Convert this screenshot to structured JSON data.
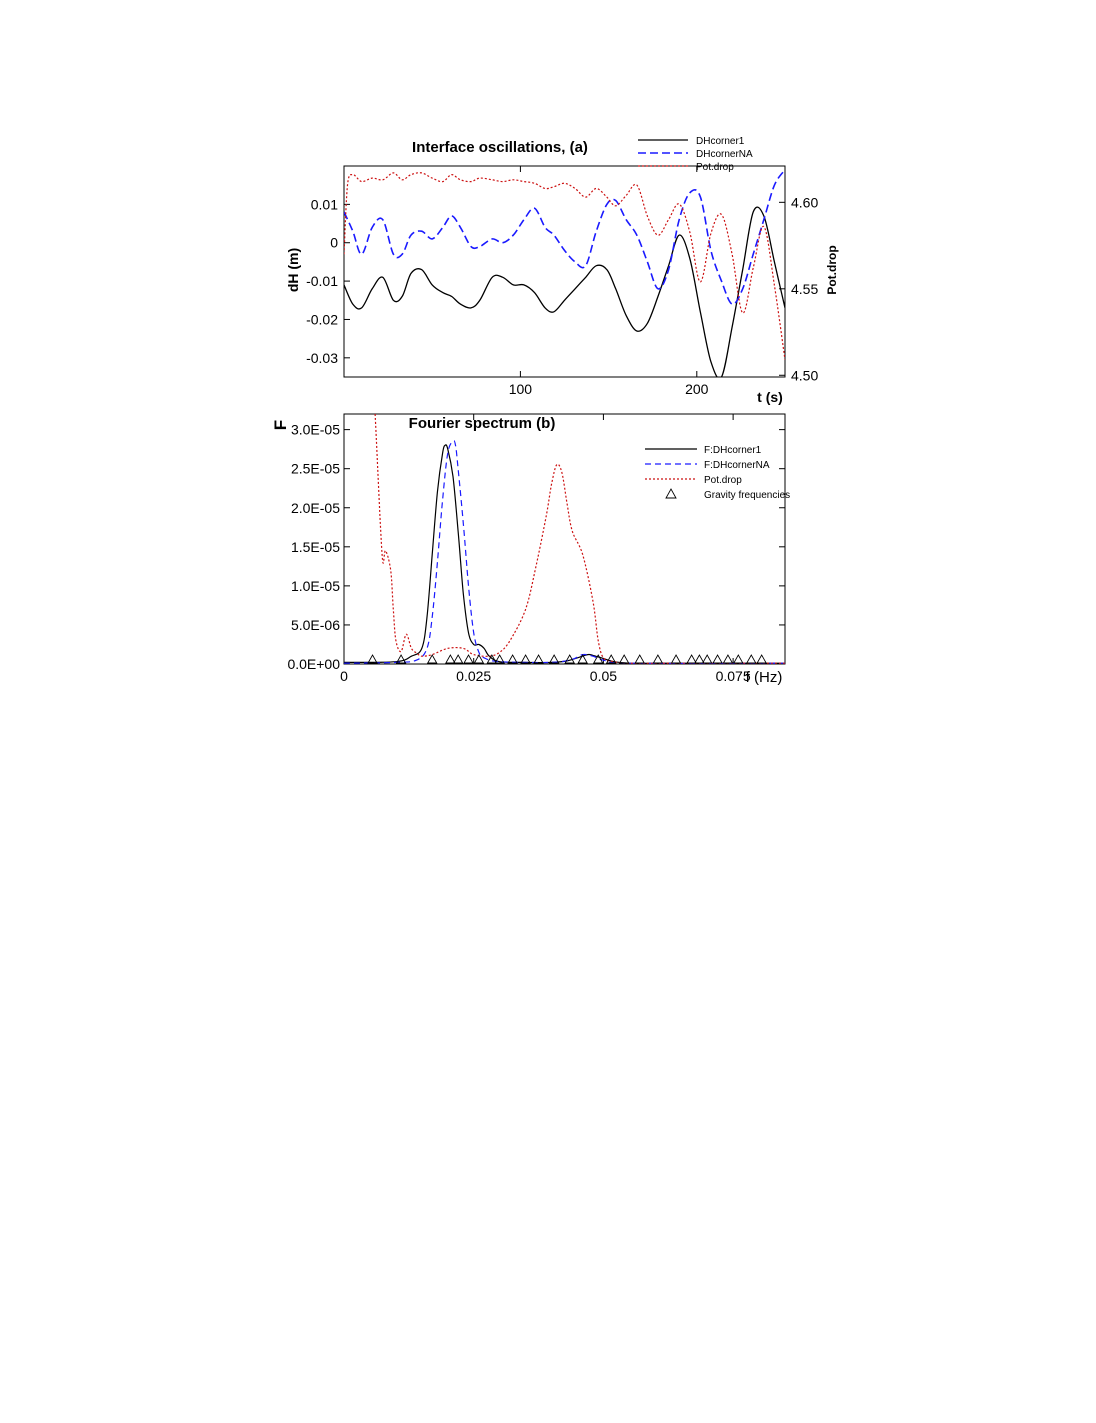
{
  "chart_data": [
    {
      "id": "a",
      "type": "line",
      "title": "Interface oscillations,  (a)",
      "xlabel": "t (s)",
      "ylabel": "dH (m)",
      "y2label": "Pot.drop",
      "xlim": [
        0,
        250
      ],
      "ylim": [
        -0.035,
        0.02
      ],
      "y2lim": [
        4.499,
        4.621
      ],
      "xticks": [
        100,
        200
      ],
      "xtick_labels": [
        "100",
        "200"
      ],
      "yticks": [
        0.01,
        0,
        -0.01,
        -0.02,
        -0.03
      ],
      "ytick_labels": [
        "0.01",
        "0",
        "-0.01",
        "-0.02",
        "-0.03"
      ],
      "y2ticks": [
        4.6,
        4.55,
        4.5
      ],
      "y2tick_labels": [
        "4.60",
        "4.55",
        "4.50"
      ],
      "legend_position": "top-right",
      "series": [
        {
          "name": "DHcorner1",
          "axis": "left",
          "color": "#000000",
          "dash": "",
          "x": [
            0,
            5,
            10,
            16,
            22,
            28,
            33,
            38,
            44,
            50,
            56,
            61,
            66,
            72,
            77,
            84,
            90,
            96,
            102,
            108,
            114,
            119,
            125,
            131,
            137,
            143,
            149,
            154,
            160,
            166,
            172,
            178,
            184,
            190,
            196,
            202,
            208,
            214,
            220,
            226,
            232,
            238,
            244,
            250
          ],
          "y": [
            -0.011,
            -0.016,
            -0.017,
            -0.012,
            -0.009,
            -0.015,
            -0.014,
            -0.008,
            -0.007,
            -0.011,
            -0.013,
            -0.014,
            -0.016,
            -0.017,
            -0.015,
            -0.009,
            -0.009,
            -0.011,
            -0.011,
            -0.013,
            -0.017,
            -0.018,
            -0.015,
            -0.012,
            -0.009,
            -0.006,
            -0.007,
            -0.012,
            -0.019,
            -0.023,
            -0.021,
            -0.014,
            -0.006,
            0.002,
            -0.004,
            -0.018,
            -0.031,
            -0.035,
            -0.022,
            -0.007,
            0.008,
            0.007,
            -0.005,
            -0.017
          ]
        },
        {
          "name": "DHcornerNA",
          "axis": "left",
          "color": "#1a1aff",
          "dash": "8,4",
          "x": [
            0,
            5,
            10,
            16,
            22,
            28,
            33,
            38,
            44,
            50,
            56,
            61,
            66,
            72,
            77,
            84,
            90,
            96,
            102,
            108,
            114,
            119,
            125,
            131,
            137,
            143,
            149,
            154,
            160,
            166,
            172,
            178,
            184,
            190,
            196,
            202,
            208,
            214,
            220,
            226,
            232,
            238,
            244,
            250
          ],
          "y": [
            0.008,
            0.003,
            -0.003,
            0.004,
            0.006,
            -0.003,
            -0.003,
            0.002,
            0.003,
            0.001,
            0.004,
            0.007,
            0.004,
            -0.001,
            -0.001,
            0.001,
            0,
            0.002,
            0.006,
            0.009,
            0.004,
            0.002,
            -0.002,
            -0.005,
            -0.006,
            0.003,
            0.01,
            0.011,
            0.006,
            0.002,
            -0.005,
            -0.012,
            -0.007,
            0.006,
            0.013,
            0.012,
            -0.002,
            -0.01,
            -0.016,
            -0.012,
            -0.003,
            0.006,
            0.015,
            0.019
          ]
        },
        {
          "name": "Pot.drop",
          "axis": "right",
          "color": "#cc1111",
          "dash": "2,2",
          "x": [
            0,
            2,
            5,
            10,
            16,
            22,
            28,
            33,
            38,
            44,
            50,
            56,
            61,
            66,
            72,
            77,
            84,
            90,
            96,
            102,
            108,
            114,
            119,
            125,
            131,
            137,
            143,
            149,
            154,
            160,
            166,
            172,
            178,
            184,
            190,
            196,
            202,
            208,
            214,
            220,
            226,
            232,
            238,
            244,
            250
          ],
          "y": [
            4.57,
            4.61,
            4.616,
            4.612,
            4.614,
            4.613,
            4.617,
            4.613,
            4.616,
            4.617,
            4.614,
            4.612,
            4.616,
            4.613,
            4.612,
            4.614,
            4.613,
            4.612,
            4.613,
            4.612,
            4.611,
            4.608,
            4.609,
            4.611,
            4.608,
            4.603,
            4.608,
            4.603,
            4.598,
            4.604,
            4.61,
            4.592,
            4.581,
            4.59,
            4.599,
            4.583,
            4.554,
            4.582,
            4.593,
            4.57,
            4.536,
            4.562,
            4.586,
            4.552,
            4.509
          ]
        }
      ]
    },
    {
      "id": "b",
      "type": "line",
      "title": "Fourier spectrum (b)",
      "xlabel": "f (Hz)",
      "ylabel": "F",
      "xlim": [
        0,
        0.085
      ],
      "ylim": [
        0,
        3.2e-05
      ],
      "xticks": [
        0,
        0.025,
        0.05,
        0.075
      ],
      "xtick_labels": [
        "0",
        "0.025",
        "0.05",
        "0.075"
      ],
      "yticks": [
        0,
        5e-06,
        1e-05,
        1.5e-05,
        2e-05,
        2.5e-05,
        3e-05
      ],
      "ytick_labels": [
        "0.0E+00",
        "5.0E-06",
        "1.0E-05",
        "1.5E-05",
        "2.0E-05",
        "2.5E-05",
        "3.0E-05"
      ],
      "legend_position": "top-right",
      "series": [
        {
          "name": "F:DHcorner1",
          "color": "#000000",
          "dash": "",
          "x": [
            0,
            0.01,
            0.013,
            0.015,
            0.016,
            0.017,
            0.018,
            0.019,
            0.0195,
            0.02,
            0.021,
            0.022,
            0.023,
            0.024,
            0.025,
            0.026,
            0.027,
            0.028,
            0.03,
            0.035,
            0.04,
            0.043,
            0.045,
            0.047,
            0.048,
            0.05,
            0.052,
            0.055,
            0.06,
            0.085
          ],
          "y": [
            2e-07,
            3e-07,
            1e-06,
            2e-06,
            6e-06,
            1.4e-05,
            2.2e-05,
            2.7e-05,
            2.8e-05,
            2.75e-05,
            2.4e-05,
            1.7e-05,
            9e-06,
            4e-06,
            2.5e-06,
            2.5e-06,
            2e-06,
            1e-06,
            3e-07,
            2e-07,
            2e-07,
            4e-07,
            8e-07,
            1.2e-06,
            1.1e-06,
            7e-07,
            3e-07,
            1e-07,
            1e-07,
            1e-07
          ]
        },
        {
          "name": "F:DHcornerNA",
          "color": "#1a1aff",
          "dash": "6,4",
          "x": [
            0,
            0.01,
            0.014,
            0.016,
            0.017,
            0.018,
            0.019,
            0.02,
            0.021,
            0.0215,
            0.022,
            0.023,
            0.024,
            0.025,
            0.026,
            0.027,
            0.03,
            0.04,
            0.044,
            0.046,
            0.048,
            0.05,
            0.055,
            0.085
          ],
          "y": [
            1e-07,
            2e-07,
            5e-07,
            2e-06,
            6e-06,
            1.3e-05,
            2.1e-05,
            2.7e-05,
            2.85e-05,
            2.8e-05,
            2.5e-05,
            1.8e-05,
            1e-05,
            4e-06,
            1.5e-06,
            8e-07,
            3e-07,
            2e-07,
            6e-07,
            1.2e-06,
            1e-06,
            5e-07,
            1e-07,
            1e-07
          ]
        },
        {
          "name": "Pot.drop",
          "color": "#cc1111",
          "dash": "2,2",
          "x": [
            0.006,
            0.0065,
            0.007,
            0.0075,
            0.008,
            0.009,
            0.0095,
            0.01,
            0.011,
            0.012,
            0.013,
            0.014,
            0.015,
            0.017,
            0.02,
            0.023,
            0.025,
            0.028,
            0.03,
            0.032,
            0.035,
            0.037,
            0.039,
            0.04,
            0.041,
            0.042,
            0.043,
            0.044,
            0.046,
            0.048,
            0.049,
            0.05,
            0.052,
            0.055,
            0.065,
            0.085
          ],
          "y": [
            3.2e-05,
            2.5e-05,
            1.8e-05,
            1.3e-05,
            1.45e-05,
            1.2e-05,
            7e-06,
            3e-06,
            1.6e-06,
            3.8e-06,
            2e-06,
            1.4e-06,
            1e-06,
            1.2e-06,
            2e-06,
            2e-06,
            1.2e-06,
            1e-06,
            1.5e-06,
            3e-06,
            7e-06,
            1.25e-05,
            1.9e-05,
            2.3e-05,
            2.55e-05,
            2.45e-05,
            2.05e-05,
            1.7e-05,
            1.4e-05,
            8e-06,
            3e-06,
            8e-07,
            3e-07,
            1e-07,
            1e-07,
            1e-07
          ]
        },
        {
          "name": "Gravity frequencies",
          "type": "scatter",
          "marker": "triangle",
          "color": "#000000",
          "x": [
            0.0055,
            0.011,
            0.017,
            0.0205,
            0.022,
            0.024,
            0.026,
            0.0285,
            0.03,
            0.0325,
            0.035,
            0.0375,
            0.0405,
            0.0435,
            0.046,
            0.049,
            0.0515,
            0.054,
            0.057,
            0.0605,
            0.064,
            0.067,
            0.0685,
            0.07,
            0.072,
            0.074,
            0.076,
            0.0785,
            0.0805
          ]
        }
      ]
    }
  ]
}
